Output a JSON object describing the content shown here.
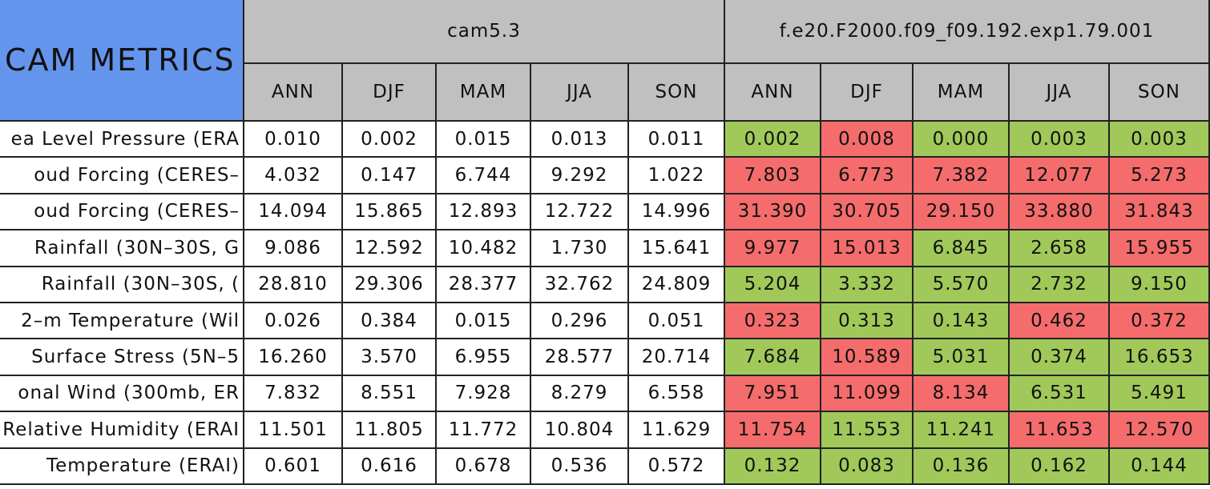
{
  "table": {
    "title": "CAM METRICS",
    "groups": [
      {
        "name": "cam5.3",
        "columns": [
          "ANN",
          "DJF",
          "MAM",
          "JJA",
          "SON"
        ]
      },
      {
        "name": "f.e20.F2000.f09_f09.192.exp1.79.001",
        "columns": [
          "ANN",
          "DJF",
          "MAM",
          "JJA",
          "SON"
        ]
      }
    ],
    "rows": [
      {
        "label": "ea Level Pressure (ERA",
        "values": [
          "0.010",
          "0.002",
          "0.015",
          "0.013",
          "0.011",
          "0.002",
          "0.008",
          "0.000",
          "0.003",
          "0.003"
        ],
        "colors": [
          "#ffffff",
          "#ffffff",
          "#ffffff",
          "#ffffff",
          "#ffffff",
          "#a0c95a",
          "#f56c6c",
          "#a0c95a",
          "#a0c95a",
          "#a0c95a"
        ]
      },
      {
        "label": "oud Forcing (CERES–",
        "values": [
          "4.032",
          "0.147",
          "6.744",
          "9.292",
          "1.022",
          "7.803",
          "6.773",
          "7.382",
          "12.077",
          "5.273"
        ],
        "colors": [
          "#ffffff",
          "#ffffff",
          "#ffffff",
          "#ffffff",
          "#ffffff",
          "#f56c6c",
          "#f56c6c",
          "#f56c6c",
          "#f56c6c",
          "#f56c6c"
        ]
      },
      {
        "label": "oud Forcing (CERES–",
        "values": [
          "14.094",
          "15.865",
          "12.893",
          "12.722",
          "14.996",
          "31.390",
          "30.705",
          "29.150",
          "33.880",
          "31.843"
        ],
        "colors": [
          "#ffffff",
          "#ffffff",
          "#ffffff",
          "#ffffff",
          "#ffffff",
          "#f56c6c",
          "#f56c6c",
          "#f56c6c",
          "#f56c6c",
          "#f56c6c"
        ]
      },
      {
        "label": "Rainfall (30N–30S, G",
        "values": [
          "9.086",
          "12.592",
          "10.482",
          "1.730",
          "15.641",
          "9.977",
          "15.013",
          "6.845",
          "2.658",
          "15.955"
        ],
        "colors": [
          "#ffffff",
          "#ffffff",
          "#ffffff",
          "#ffffff",
          "#ffffff",
          "#f56c6c",
          "#f56c6c",
          "#a0c95a",
          "#a0c95a",
          "#f56c6c"
        ]
      },
      {
        "label": "Rainfall (30N–30S, (",
        "values": [
          "28.810",
          "29.306",
          "28.377",
          "32.762",
          "24.809",
          "5.204",
          "3.332",
          "5.570",
          "2.732",
          "9.150"
        ],
        "colors": [
          "#ffffff",
          "#ffffff",
          "#ffffff",
          "#ffffff",
          "#ffffff",
          "#a0c95a",
          "#a0c95a",
          "#a0c95a",
          "#a0c95a",
          "#a0c95a"
        ]
      },
      {
        "label": "2–m Temperature (Wil",
        "values": [
          "0.026",
          "0.384",
          "0.015",
          "0.296",
          "0.051",
          "0.323",
          "0.313",
          "0.143",
          "0.462",
          "0.372"
        ],
        "colors": [
          "#ffffff",
          "#ffffff",
          "#ffffff",
          "#ffffff",
          "#ffffff",
          "#f56c6c",
          "#a0c95a",
          "#a0c95a",
          "#f56c6c",
          "#f56c6c"
        ]
      },
      {
        "label": "Surface Stress (5N–5",
        "values": [
          "16.260",
          "3.570",
          "6.955",
          "28.577",
          "20.714",
          "7.684",
          "10.589",
          "5.031",
          "0.374",
          "16.653"
        ],
        "colors": [
          "#ffffff",
          "#ffffff",
          "#ffffff",
          "#ffffff",
          "#ffffff",
          "#a0c95a",
          "#f56c6c",
          "#a0c95a",
          "#a0c95a",
          "#a0c95a"
        ]
      },
      {
        "label": "onal Wind (300mb, ER",
        "values": [
          "7.832",
          "8.551",
          "7.928",
          "8.279",
          "6.558",
          "7.951",
          "11.099",
          "8.134",
          "6.531",
          "5.491"
        ],
        "colors": [
          "#ffffff",
          "#ffffff",
          "#ffffff",
          "#ffffff",
          "#ffffff",
          "#f56c6c",
          "#f56c6c",
          "#f56c6c",
          "#a0c95a",
          "#a0c95a"
        ]
      },
      {
        "label": "Relative Humidity (ERAI",
        "values": [
          "11.501",
          "11.805",
          "11.772",
          "10.804",
          "11.629",
          "11.754",
          "11.553",
          "11.241",
          "11.653",
          "12.570"
        ],
        "colors": [
          "#ffffff",
          "#ffffff",
          "#ffffff",
          "#ffffff",
          "#ffffff",
          "#f56c6c",
          "#a0c95a",
          "#a0c95a",
          "#f56c6c",
          "#f56c6c"
        ]
      },
      {
        "label": "Temperature (ERAI)",
        "values": [
          "0.601",
          "0.616",
          "0.678",
          "0.536",
          "0.572",
          "0.132",
          "0.083",
          "0.136",
          "0.162",
          "0.144"
        ],
        "colors": [
          "#ffffff",
          "#ffffff",
          "#ffffff",
          "#ffffff",
          "#ffffff",
          "#a0c95a",
          "#a0c95a",
          "#a0c95a",
          "#a0c95a",
          "#a0c95a"
        ]
      }
    ]
  }
}
